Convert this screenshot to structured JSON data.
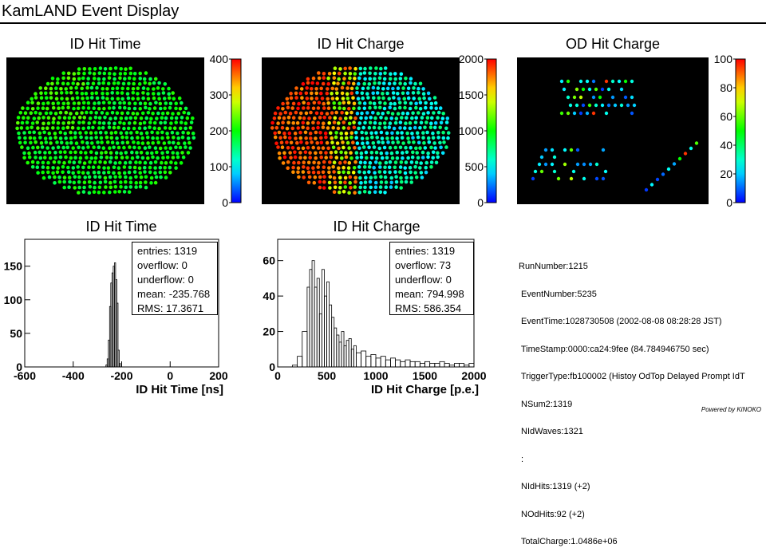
{
  "header": {
    "title": "KamLAND Event Display"
  },
  "maps": {
    "id_time": {
      "title": "ID Hit Time",
      "scale_ticks": [
        "400",
        "300",
        "200",
        "100",
        "0"
      ]
    },
    "id_charge": {
      "title": "ID Hit Charge",
      "scale_ticks": [
        "2000",
        "1500",
        "1000",
        "500",
        "0"
      ]
    },
    "od_charge": {
      "title": "OD Hit Charge",
      "scale_ticks": [
        "100",
        "80",
        "60",
        "40",
        "20",
        "0"
      ]
    }
  },
  "chart_data": [
    {
      "type": "bar",
      "title": "ID Hit Time",
      "xlabel": "ID Hit Time [ns]",
      "ylabel": "",
      "xlim": [
        -600,
        200
      ],
      "ylim": [
        0,
        190
      ],
      "x_ticks": [
        -600,
        -400,
        -200,
        0,
        200
      ],
      "y_ticks": [
        0,
        50,
        100,
        150
      ],
      "bins": [
        {
          "x": -265,
          "y": 3
        },
        {
          "x": -260,
          "y": 12
        },
        {
          "x": -255,
          "y": 40
        },
        {
          "x": -250,
          "y": 90
        },
        {
          "x": -245,
          "y": 125
        },
        {
          "x": -240,
          "y": 140
        },
        {
          "x": -235,
          "y": 150
        },
        {
          "x": -230,
          "y": 155
        },
        {
          "x": -225,
          "y": 130
        },
        {
          "x": -220,
          "y": 95
        },
        {
          "x": -215,
          "y": 25
        },
        {
          "x": -210,
          "y": 5
        }
      ],
      "stats": {
        "entries": "entries: 1319",
        "overflow": "overflow: 0",
        "underflow": "underflow: 0",
        "mean": "mean: -235.768",
        "rms": "RMS: 17.3671"
      }
    },
    {
      "type": "bar",
      "title": "ID Hit Charge",
      "xlabel": "ID Hit Charge [p.e.]",
      "ylabel": "",
      "xlim": [
        0,
        2000
      ],
      "ylim": [
        0,
        72
      ],
      "x_ticks": [
        0,
        500,
        1000,
        1500,
        2000
      ],
      "y_ticks": [
        0,
        20,
        40,
        60
      ],
      "bins": [
        {
          "x": 150,
          "y": 1
        },
        {
          "x": 200,
          "y": 6
        },
        {
          "x": 250,
          "y": 20
        },
        {
          "x": 300,
          "y": 45
        },
        {
          "x": 325,
          "y": 55
        },
        {
          "x": 350,
          "y": 60
        },
        {
          "x": 375,
          "y": 45
        },
        {
          "x": 400,
          "y": 50
        },
        {
          "x": 425,
          "y": 30
        },
        {
          "x": 450,
          "y": 55
        },
        {
          "x": 475,
          "y": 40
        },
        {
          "x": 500,
          "y": 48
        },
        {
          "x": 525,
          "y": 35
        },
        {
          "x": 550,
          "y": 28
        },
        {
          "x": 575,
          "y": 22
        },
        {
          "x": 600,
          "y": 18
        },
        {
          "x": 625,
          "y": 14
        },
        {
          "x": 650,
          "y": 20
        },
        {
          "x": 675,
          "y": 12
        },
        {
          "x": 700,
          "y": 15
        },
        {
          "x": 725,
          "y": 16
        },
        {
          "x": 750,
          "y": 10
        },
        {
          "x": 775,
          "y": 12
        },
        {
          "x": 800,
          "y": 8
        },
        {
          "x": 850,
          "y": 9
        },
        {
          "x": 900,
          "y": 6
        },
        {
          "x": 950,
          "y": 7
        },
        {
          "x": 1000,
          "y": 5
        },
        {
          "x": 1050,
          "y": 6
        },
        {
          "x": 1100,
          "y": 4
        },
        {
          "x": 1150,
          "y": 5
        },
        {
          "x": 1200,
          "y": 4
        },
        {
          "x": 1250,
          "y": 3
        },
        {
          "x": 1300,
          "y": 4
        },
        {
          "x": 1350,
          "y": 3
        },
        {
          "x": 1400,
          "y": 3
        },
        {
          "x": 1450,
          "y": 2
        },
        {
          "x": 1500,
          "y": 3
        },
        {
          "x": 1550,
          "y": 2
        },
        {
          "x": 1600,
          "y": 2
        },
        {
          "x": 1650,
          "y": 3
        },
        {
          "x": 1700,
          "y": 2
        },
        {
          "x": 1750,
          "y": 1
        },
        {
          "x": 1800,
          "y": 2
        },
        {
          "x": 1850,
          "y": 2
        },
        {
          "x": 1900,
          "y": 1
        },
        {
          "x": 1950,
          "y": 2
        }
      ],
      "stats": {
        "entries": "entries: 1319",
        "overflow": "overflow: 73",
        "underflow": "underflow: 0",
        "mean": "mean: 794.998",
        "rms": "RMS: 586.354"
      }
    }
  ],
  "info": {
    "lines": [
      "RunNumber:1215",
      " EventNumber:5235",
      " EventTime:1028730508 (2002-08-08 08:28:28 JST)",
      " TimeStamp:0000:ca24:9fee (84.784946750 sec)",
      " TriggerType:fb100002 (Histoy OdTop Delayed Prompt IdT",
      " NSum2:1319",
      " NIdWaves:1321",
      " :",
      " NIdHits:1319 (+2)",
      " NOdHits:92 (+2)",
      " TotalCharge:1.0486e+06"
    ]
  },
  "footer": {
    "text": "Powered by KiNOKO"
  }
}
